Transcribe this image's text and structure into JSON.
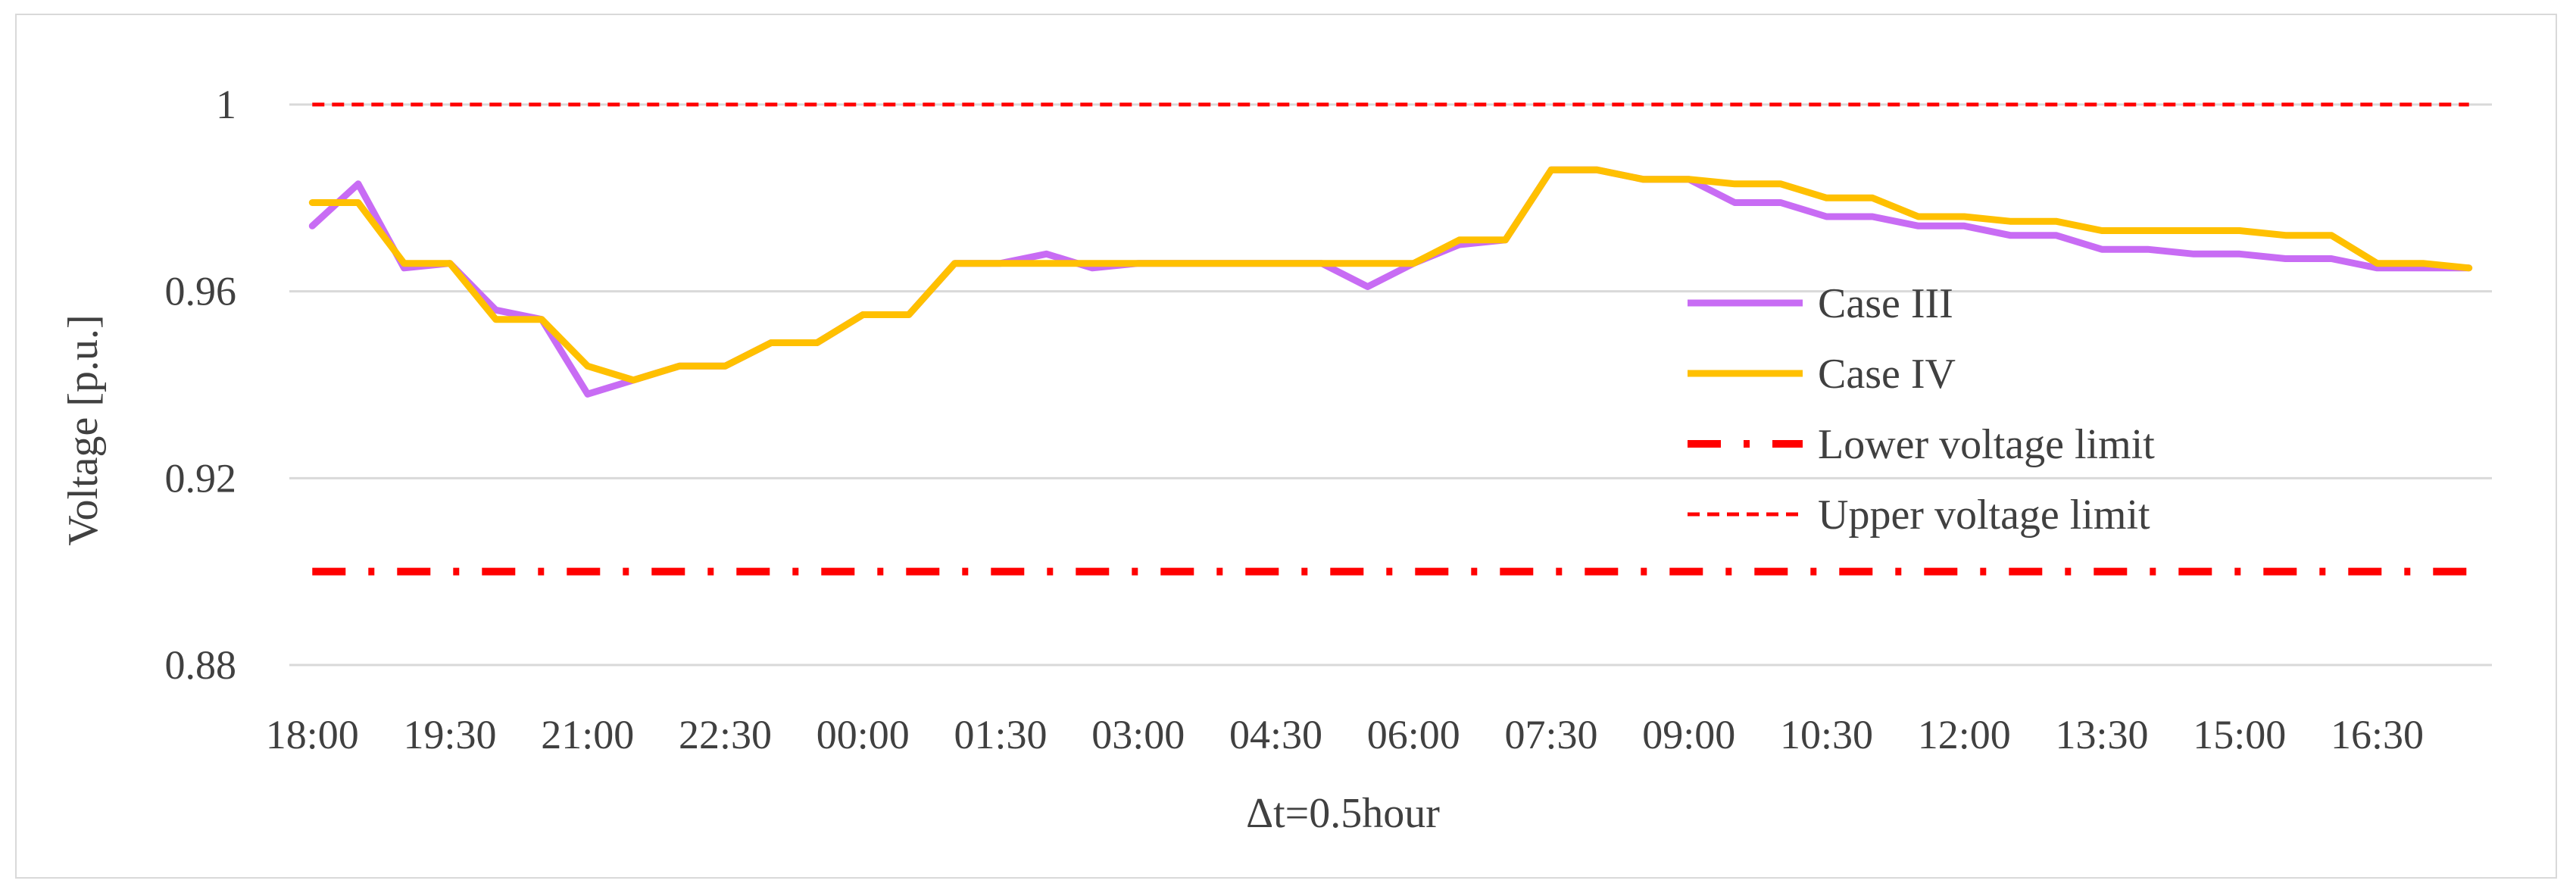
{
  "chart_data": {
    "type": "line",
    "xlabel": "Δt=0.5hour",
    "ylabel": "Voltage [p.u.]",
    "ylim": [
      0.88,
      1.0
    ],
    "yticks": [
      "0.88",
      "0.92",
      "0.96",
      "1"
    ],
    "ytick_values": [
      0.88,
      0.92,
      0.96,
      1.0
    ],
    "x": [
      "18:00",
      "18:30",
      "19:00",
      "19:30",
      "20:00",
      "20:30",
      "21:00",
      "21:30",
      "22:00",
      "22:30",
      "23:00",
      "23:30",
      "00:00",
      "00:30",
      "01:00",
      "01:30",
      "02:00",
      "02:30",
      "03:00",
      "03:30",
      "04:00",
      "04:30",
      "05:00",
      "05:30",
      "06:00",
      "06:30",
      "07:00",
      "07:30",
      "08:00",
      "08:30",
      "09:00",
      "09:30",
      "10:00",
      "10:30",
      "11:00",
      "11:30",
      "12:00",
      "12:30",
      "13:00",
      "13:30",
      "14:00",
      "14:30",
      "15:00",
      "15:30",
      "16:00",
      "16:30",
      "17:00",
      "17:30"
    ],
    "xtick_labels": [
      "18:00",
      "19:30",
      "21:00",
      "22:30",
      "00:00",
      "01:30",
      "03:00",
      "04:30",
      "06:00",
      "07:30",
      "09:00",
      "10:30",
      "12:00",
      "13:30",
      "15:00",
      "16:30"
    ],
    "series": [
      {
        "name": "Case III",
        "color": "#c86cf4",
        "values": [
          0.974,
          0.983,
          0.965,
          0.966,
          0.956,
          0.954,
          0.938,
          0.941,
          0.944,
          0.944,
          0.949,
          0.949,
          0.955,
          0.955,
          0.966,
          0.966,
          0.968,
          0.965,
          0.966,
          0.966,
          0.966,
          0.966,
          0.966,
          0.961,
          0.966,
          0.97,
          0.971,
          0.986,
          0.986,
          0.984,
          0.984,
          0.979,
          0.979,
          0.976,
          0.976,
          0.974,
          0.974,
          0.972,
          0.972,
          0.969,
          0.969,
          0.968,
          0.968,
          0.967,
          0.967,
          0.965,
          0.965,
          0.965
        ]
      },
      {
        "name": "Case IV",
        "color": "#ffc000",
        "values": [
          0.979,
          0.979,
          0.966,
          0.966,
          0.954,
          0.954,
          0.944,
          0.941,
          0.944,
          0.944,
          0.949,
          0.949,
          0.955,
          0.955,
          0.966,
          0.966,
          0.966,
          0.966,
          0.966,
          0.966,
          0.966,
          0.966,
          0.966,
          0.966,
          0.966,
          0.971,
          0.971,
          0.986,
          0.986,
          0.984,
          0.984,
          0.983,
          0.983,
          0.98,
          0.98,
          0.976,
          0.976,
          0.975,
          0.975,
          0.973,
          0.973,
          0.973,
          0.973,
          0.972,
          0.972,
          0.966,
          0.966,
          0.965
        ]
      },
      {
        "name": "Lower voltage limit",
        "color": "#ff0000",
        "style": "dash-dot",
        "values": [
          0.9,
          0.9,
          0.9,
          0.9,
          0.9,
          0.9,
          0.9,
          0.9,
          0.9,
          0.9,
          0.9,
          0.9,
          0.9,
          0.9,
          0.9,
          0.9,
          0.9,
          0.9,
          0.9,
          0.9,
          0.9,
          0.9,
          0.9,
          0.9,
          0.9,
          0.9,
          0.9,
          0.9,
          0.9,
          0.9,
          0.9,
          0.9,
          0.9,
          0.9,
          0.9,
          0.9,
          0.9,
          0.9,
          0.9,
          0.9,
          0.9,
          0.9,
          0.9,
          0.9,
          0.9,
          0.9,
          0.9,
          0.9
        ]
      },
      {
        "name": "Upper voltage limit",
        "color": "#ff0000",
        "style": "dashed",
        "values": [
          1,
          1,
          1,
          1,
          1,
          1,
          1,
          1,
          1,
          1,
          1,
          1,
          1,
          1,
          1,
          1,
          1,
          1,
          1,
          1,
          1,
          1,
          1,
          1,
          1,
          1,
          1,
          1,
          1,
          1,
          1,
          1,
          1,
          1,
          1,
          1,
          1,
          1,
          1,
          1,
          1,
          1,
          1,
          1,
          1,
          1,
          1,
          1
        ]
      }
    ],
    "grid": "horizontal",
    "legend_position": "right-inside"
  }
}
